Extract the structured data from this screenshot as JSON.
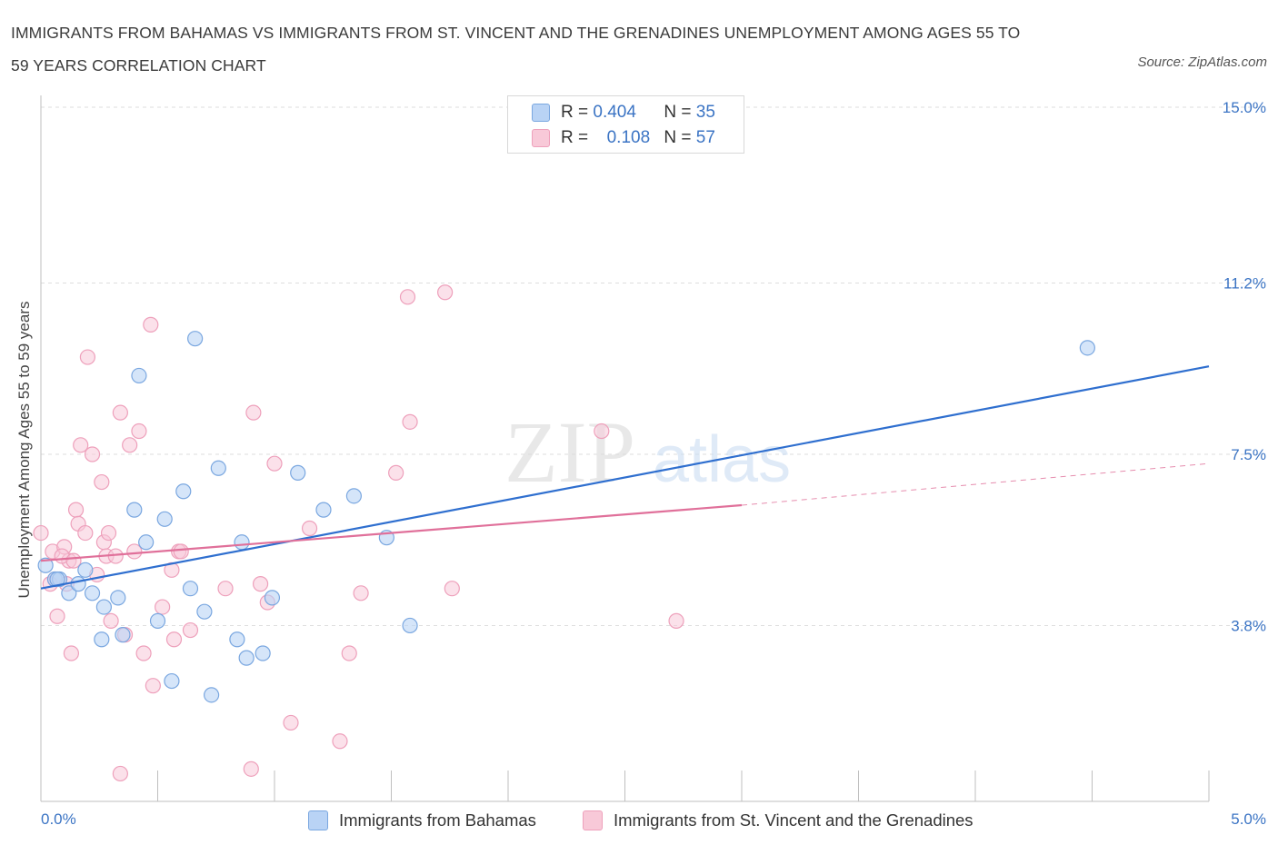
{
  "header": {
    "title_line1": "IMMIGRANTS FROM BAHAMAS VS IMMIGRANTS FROM ST. VINCENT AND THE GRENADINES UNEMPLOYMENT AMONG AGES 55 TO",
    "title_line2": "59 YEARS CORRELATION CHART",
    "source": "Source: ZipAtlas.com"
  },
  "watermark": {
    "zip": "ZIP",
    "atlas": "atlas"
  },
  "legend": {
    "r_label": "R =",
    "n_label": "N =",
    "rows": [
      {
        "r": "0.404",
        "n": "35",
        "color": "#b9d3f5"
      },
      {
        "r": "0.108",
        "n": "57",
        "color": "#f8c9d8"
      }
    ]
  },
  "bottom_legend": {
    "series1": "Immigrants from Bahamas",
    "series2": "Immigrants from St. Vincent and the Grenadines"
  },
  "colors": {
    "blue_fill": "#b9d3f5",
    "blue_stroke": "#7aa7e0",
    "blue_line": "#2f6fcf",
    "pink_fill": "#f8c9d8",
    "pink_stroke": "#eea0bb",
    "pink_line": "#e0709a",
    "axis_text": "#3b74c4"
  },
  "chart_data": {
    "type": "scatter",
    "title": "IMMIGRANTS FROM BAHAMAS VS IMMIGRANTS FROM ST. VINCENT AND THE GRENADINES UNEMPLOYMENT AMONG AGES 55 TO 59 YEARS CORRELATION CHART",
    "xlabel": "",
    "ylabel": "Unemployment Among Ages 55 to 59 years",
    "xlim": [
      0,
      5
    ],
    "ylim": [
      0,
      15
    ],
    "x_tick_labels": [
      "0.0%",
      "5.0%"
    ],
    "y_ticks": [
      3.8,
      7.5,
      11.2,
      15.0
    ],
    "y_tick_labels": [
      "3.8%",
      "7.5%",
      "11.2%",
      "15.0%"
    ],
    "grid": "horizontal dashed",
    "legend_placement": "top-center",
    "series": [
      {
        "name": "Immigrants from Bahamas",
        "R": 0.404,
        "N": 35,
        "points": [
          [
            0.02,
            5.1
          ],
          [
            0.06,
            4.8
          ],
          [
            0.08,
            4.8
          ],
          [
            0.12,
            4.5
          ],
          [
            0.16,
            4.7
          ],
          [
            0.19,
            5.0
          ],
          [
            0.22,
            4.5
          ],
          [
            0.27,
            4.2
          ],
          [
            0.33,
            4.4
          ],
          [
            0.26,
            3.5
          ],
          [
            0.35,
            3.6
          ],
          [
            0.4,
            6.3
          ],
          [
            0.45,
            5.6
          ],
          [
            0.5,
            3.9
          ],
          [
            0.53,
            6.1
          ],
          [
            0.61,
            6.7
          ],
          [
            0.64,
            4.6
          ],
          [
            0.7,
            4.1
          ],
          [
            0.76,
            7.2
          ],
          [
            0.84,
            3.5
          ],
          [
            0.88,
            3.1
          ],
          [
            0.95,
            3.2
          ],
          [
            0.99,
            4.4
          ],
          [
            1.1,
            7.1
          ],
          [
            1.21,
            6.3
          ],
          [
            1.34,
            6.6
          ],
          [
            1.48,
            5.7
          ],
          [
            1.58,
            3.8
          ],
          [
            0.86,
            5.6
          ],
          [
            0.42,
            9.2
          ],
          [
            0.66,
            10.0
          ],
          [
            0.56,
            2.6
          ],
          [
            0.73,
            2.3
          ],
          [
            4.48,
            9.8
          ],
          [
            0.07,
            4.8
          ]
        ],
        "trend": {
          "x": [
            0.0,
            5.0
          ],
          "y": [
            4.6,
            9.4
          ]
        }
      },
      {
        "name": "Immigrants from St. Vincent and the Grenadines",
        "R": 0.108,
        "N": 57,
        "points": [
          [
            0.0,
            5.8
          ],
          [
            0.05,
            5.4
          ],
          [
            0.06,
            4.8
          ],
          [
            0.07,
            4.0
          ],
          [
            0.1,
            5.5
          ],
          [
            0.12,
            5.2
          ],
          [
            0.13,
            3.2
          ],
          [
            0.15,
            6.3
          ],
          [
            0.16,
            6.0
          ],
          [
            0.17,
            7.7
          ],
          [
            0.19,
            5.8
          ],
          [
            0.2,
            9.6
          ],
          [
            0.22,
            7.5
          ],
          [
            0.24,
            4.9
          ],
          [
            0.26,
            6.9
          ],
          [
            0.27,
            5.6
          ],
          [
            0.28,
            5.3
          ],
          [
            0.29,
            5.8
          ],
          [
            0.3,
            3.9
          ],
          [
            0.32,
            5.3
          ],
          [
            0.34,
            8.4
          ],
          [
            0.36,
            3.6
          ],
          [
            0.38,
            7.7
          ],
          [
            0.4,
            5.4
          ],
          [
            0.42,
            8.0
          ],
          [
            0.44,
            3.2
          ],
          [
            0.47,
            10.3
          ],
          [
            0.48,
            2.5
          ],
          [
            0.52,
            4.2
          ],
          [
            0.56,
            5.0
          ],
          [
            0.57,
            3.5
          ],
          [
            0.59,
            5.4
          ],
          [
            0.6,
            5.4
          ],
          [
            0.64,
            3.7
          ],
          [
            0.79,
            4.6
          ],
          [
            0.91,
            8.4
          ],
          [
            0.94,
            4.7
          ],
          [
            0.97,
            4.3
          ],
          [
            1.0,
            7.3
          ],
          [
            1.07,
            1.7
          ],
          [
            1.15,
            5.9
          ],
          [
            1.28,
            1.3
          ],
          [
            1.32,
            3.2
          ],
          [
            1.37,
            4.5
          ],
          [
            1.52,
            7.1
          ],
          [
            1.57,
            10.9
          ],
          [
            1.58,
            8.2
          ],
          [
            1.73,
            11.0
          ],
          [
            1.76,
            4.6
          ],
          [
            2.4,
            8.0
          ],
          [
            2.72,
            3.9
          ],
          [
            0.34,
            0.6
          ],
          [
            0.9,
            0.7
          ],
          [
            0.04,
            4.7
          ],
          [
            0.09,
            5.3
          ],
          [
            0.14,
            5.2
          ],
          [
            0.11,
            4.7
          ]
        ],
        "trend_solid": {
          "x": [
            0.0,
            3.0
          ],
          "y": [
            5.2,
            6.4
          ]
        },
        "trend_dashed": {
          "x": [
            3.0,
            5.0
          ],
          "y": [
            6.4,
            7.3
          ]
        }
      }
    ]
  }
}
